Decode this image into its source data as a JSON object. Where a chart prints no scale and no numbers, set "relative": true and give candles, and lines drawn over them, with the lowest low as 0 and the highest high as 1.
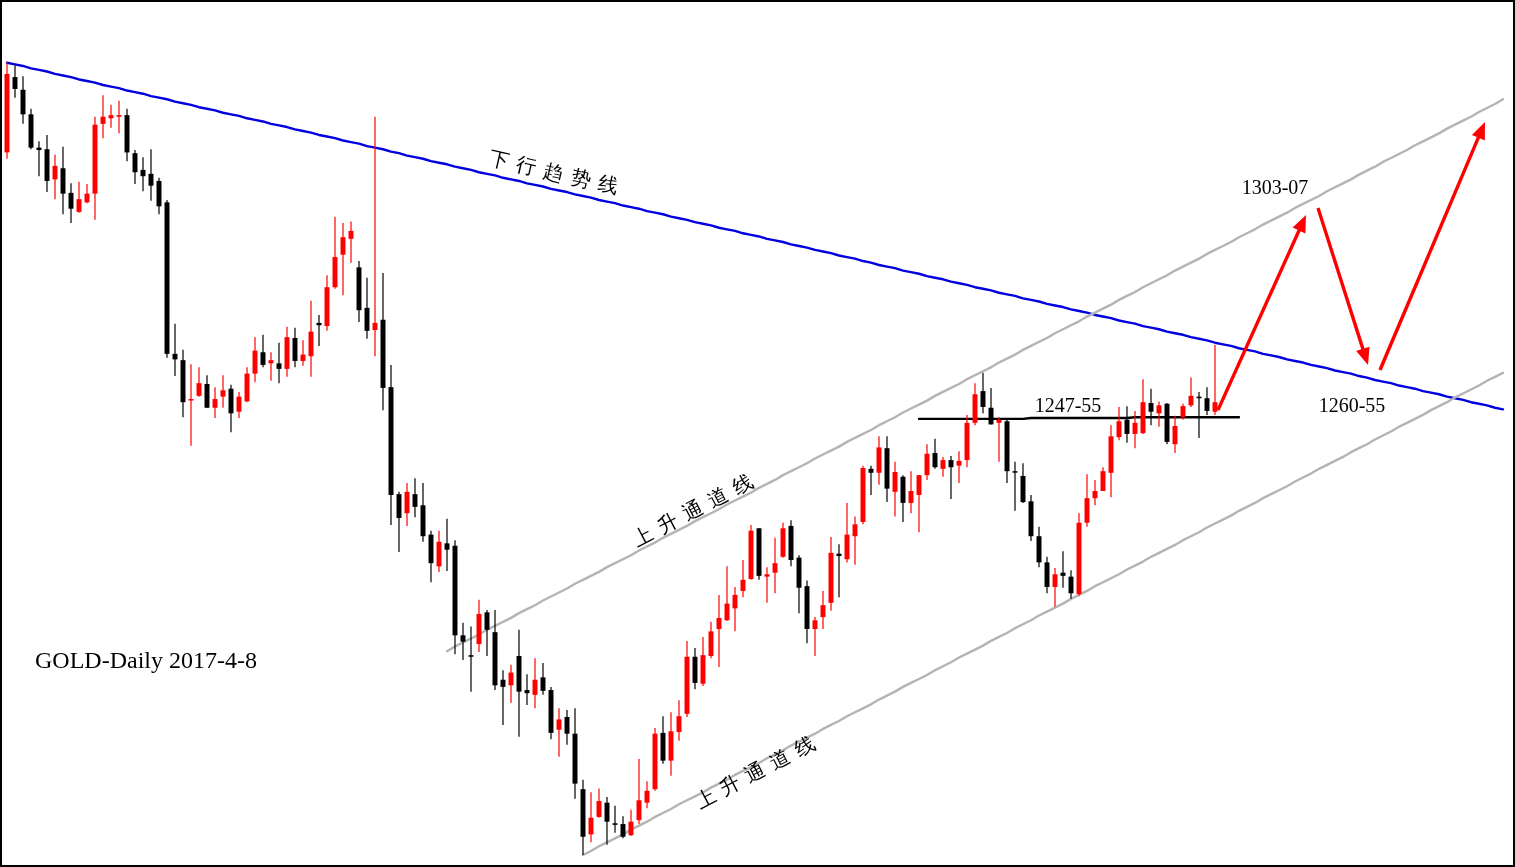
{
  "chart_data": {
    "type": "candlestick",
    "relative": true,
    "categories": [
      null,
      null,
      null,
      null,
      null,
      null,
      null,
      null,
      null,
      null,
      null,
      null,
      null,
      null,
      null,
      null,
      null,
      null,
      null,
      null,
      null,
      null,
      null,
      null,
      null,
      null,
      null,
      null,
      null,
      null,
      null,
      null,
      null,
      null,
      null,
      null,
      null,
      null,
      null,
      null,
      null,
      null,
      null,
      null,
      null,
      null,
      null,
      null,
      null,
      null,
      null,
      null,
      null,
      null,
      null,
      null,
      null,
      null,
      null,
      null,
      null,
      null,
      null,
      null,
      null,
      null,
      null,
      null,
      null,
      null,
      null,
      null,
      null,
      null,
      null,
      null,
      null,
      null,
      null,
      null,
      null,
      null,
      null,
      null,
      null,
      null,
      null,
      null,
      null,
      null,
      null,
      null,
      null,
      null,
      null,
      null,
      null,
      null,
      null,
      null,
      null,
      null,
      null,
      null,
      null,
      null,
      null,
      null,
      null,
      null,
      null,
      null,
      null,
      null,
      null,
      null,
      null,
      null,
      null,
      null,
      null,
      null,
      null,
      null,
      null,
      null,
      null,
      null,
      null,
      null,
      null,
      null,
      null,
      null,
      null,
      null,
      null,
      null,
      null,
      null,
      null,
      null,
      null,
      null,
      null,
      null,
      null,
      null,
      null,
      null,
      null,
      null,
      null,
      null,
      null,
      null,
      null,
      null,
      null,
      null,
      null,
      null,
      null,
      null,
      null,
      null,
      null,
      null,
      null,
      null,
      null,
      null,
      null,
      null,
      null,
      null,
      null,
      null,
      null,
      null,
      null,
      null,
      null,
      null,
      null,
      null,
      null,
      null
    ],
    "annotations": [
      "GOLD-Daily 2017-4-8",
      "1247-55",
      "1303-07",
      "1260-55"
    ],
    "series": [
      {
        "ohlc": [
          [
            0.886,
            1.0,
            0.878,
            0.985
          ],
          [
            0.981,
            0.996,
            0.955,
            0.966
          ],
          [
            0.965,
            0.982,
            0.922,
            0.934
          ],
          [
            0.934,
            0.941,
            0.89,
            0.892
          ],
          [
            0.892,
            0.9,
            0.856,
            0.889
          ],
          [
            0.89,
            0.908,
            0.836,
            0.85
          ],
          [
            0.852,
            0.883,
            0.827,
            0.869
          ],
          [
            0.866,
            0.893,
            0.808,
            0.834
          ],
          [
            0.835,
            0.847,
            0.797,
            0.815
          ],
          [
            0.811,
            0.849,
            0.81,
            0.827
          ],
          [
            0.823,
            0.846,
            0.822,
            0.834
          ],
          [
            0.834,
            0.931,
            0.801,
            0.921
          ],
          [
            0.922,
            0.958,
            0.904,
            0.931
          ],
          [
            0.929,
            0.946,
            0.917,
            0.933
          ],
          [
            0.931,
            0.951,
            0.91,
            0.933
          ],
          [
            0.933,
            0.941,
            0.875,
            0.886
          ],
          [
            0.885,
            0.889,
            0.846,
            0.861
          ],
          [
            0.864,
            0.88,
            0.837,
            0.856
          ],
          [
            0.859,
            0.89,
            0.825,
            0.844
          ],
          [
            0.85,
            0.854,
            0.808,
            0.818
          ],
          [
            0.823,
            0.826,
            0.627,
            0.632
          ],
          [
            0.632,
            0.67,
            0.604,
            0.625
          ],
          [
            0.624,
            0.637,
            0.552,
            0.571
          ],
          [
            0.574,
            0.619,
            0.516,
            0.575
          ],
          [
            0.579,
            0.615,
            0.578,
            0.595
          ],
          [
            0.594,
            0.605,
            0.564,
            0.564
          ],
          [
            0.564,
            0.59,
            0.551,
            0.575
          ],
          [
            0.578,
            0.605,
            0.564,
            0.586
          ],
          [
            0.588,
            0.593,
            0.533,
            0.557
          ],
          [
            0.559,
            0.584,
            0.551,
            0.578
          ],
          [
            0.572,
            0.615,
            0.571,
            0.607
          ],
          [
            0.607,
            0.653,
            0.596,
            0.636
          ],
          [
            0.634,
            0.656,
            0.615,
            0.618
          ],
          [
            0.62,
            0.634,
            0.598,
            0.624
          ],
          [
            0.62,
            0.646,
            0.595,
            0.613
          ],
          [
            0.613,
            0.666,
            0.603,
            0.653
          ],
          [
            0.652,
            0.665,
            0.615,
            0.623
          ],
          [
            0.623,
            0.649,
            0.617,
            0.631
          ],
          [
            0.629,
            0.699,
            0.603,
            0.66
          ],
          [
            0.671,
            0.681,
            0.642,
            0.668
          ],
          [
            0.667,
            0.731,
            0.661,
            0.716
          ],
          [
            0.716,
            0.805,
            0.714,
            0.754
          ],
          [
            0.757,
            0.797,
            0.706,
            0.779
          ],
          [
            0.777,
            0.799,
            0.747,
            0.787
          ],
          [
            0.741,
            0.749,
            0.672,
            0.687
          ],
          [
            0.69,
            0.728,
            0.651,
            0.661
          ],
          [
            0.662,
            0.931,
            0.629,
            0.671
          ],
          [
            0.675,
            0.734,
            0.561,
            0.589
          ],
          [
            0.59,
            0.618,
            0.416,
            0.454
          ],
          [
            0.455,
            0.458,
            0.382,
            0.425
          ],
          [
            0.431,
            0.469,
            0.415,
            0.458
          ],
          [
            0.455,
            0.475,
            0.426,
            0.439
          ],
          [
            0.441,
            0.469,
            0.395,
            0.402
          ],
          [
            0.404,
            0.409,
            0.344,
            0.368
          ],
          [
            0.364,
            0.409,
            0.357,
            0.395
          ],
          [
            0.393,
            0.424,
            0.358,
            0.385
          ],
          [
            0.39,
            0.397,
            0.253,
            0.277
          ],
          [
            0.277,
            0.293,
            0.246,
            0.269
          ],
          [
            0.252,
            0.288,
            0.206,
            0.25
          ],
          [
            0.266,
            0.322,
            0.256,
            0.304
          ],
          [
            0.306,
            0.309,
            0.251,
            0.284
          ],
          [
            0.281,
            0.309,
            0.208,
            0.214
          ],
          [
            0.221,
            0.233,
            0.164,
            0.212
          ],
          [
            0.214,
            0.24,
            0.192,
            0.23
          ],
          [
            0.251,
            0.284,
            0.149,
            0.206
          ],
          [
            0.208,
            0.228,
            0.189,
            0.204
          ],
          [
            0.202,
            0.248,
            0.185,
            0.221
          ],
          [
            0.224,
            0.242,
            0.202,
            0.207
          ],
          [
            0.208,
            0.212,
            0.146,
            0.154
          ],
          [
            0.158,
            0.185,
            0.124,
            0.171
          ],
          [
            0.174,
            0.183,
            0.139,
            0.153
          ],
          [
            0.153,
            0.185,
            0.071,
            0.09
          ],
          [
            0.083,
            0.095,
            0.0,
            0.023
          ],
          [
            0.026,
            0.079,
            0.016,
            0.047
          ],
          [
            0.048,
            0.084,
            0.047,
            0.068
          ],
          [
            0.066,
            0.073,
            0.013,
            0.042
          ],
          [
            0.04,
            0.062,
            0.028,
            0.038
          ],
          [
            0.039,
            0.049,
            0.021,
            0.023
          ],
          [
            0.025,
            0.057,
            0.024,
            0.042
          ],
          [
            0.044,
            0.121,
            0.039,
            0.069
          ],
          [
            0.066,
            0.093,
            0.059,
            0.081
          ],
          [
            0.083,
            0.16,
            0.081,
            0.153
          ],
          [
            0.154,
            0.175,
            0.115,
            0.119
          ],
          [
            0.119,
            0.18,
            0.1,
            0.156
          ],
          [
            0.155,
            0.195,
            0.144,
            0.175
          ],
          [
            0.178,
            0.27,
            0.174,
            0.25
          ],
          [
            0.25,
            0.261,
            0.209,
            0.217
          ],
          [
            0.216,
            0.275,
            0.213,
            0.252
          ],
          [
            0.251,
            0.294,
            0.248,
            0.282
          ],
          [
            0.285,
            0.328,
            0.237,
            0.299
          ],
          [
            0.296,
            0.364,
            0.295,
            0.317
          ],
          [
            0.311,
            0.338,
            0.282,
            0.328
          ],
          [
            0.333,
            0.372,
            0.325,
            0.347
          ],
          [
            0.348,
            0.416,
            0.347,
            0.409
          ],
          [
            0.412,
            0.412,
            0.347,
            0.352
          ],
          [
            0.351,
            0.363,
            0.318,
            0.354
          ],
          [
            0.356,
            0.4,
            0.33,
            0.368
          ],
          [
            0.376,
            0.419,
            0.375,
            0.412
          ],
          [
            0.415,
            0.422,
            0.364,
            0.372
          ],
          [
            0.375,
            0.378,
            0.305,
            0.337
          ],
          [
            0.339,
            0.346,
            0.267,
            0.285
          ],
          [
            0.285,
            0.3,
            0.251,
            0.296
          ],
          [
            0.3,
            0.333,
            0.285,
            0.315
          ],
          [
            0.318,
            0.401,
            0.308,
            0.381
          ],
          [
            0.38,
            0.392,
            0.325,
            0.377
          ],
          [
            0.373,
            0.444,
            0.369,
            0.404
          ],
          [
            0.402,
            0.427,
            0.366,
            0.417
          ],
          [
            0.42,
            0.491,
            0.417,
            0.488
          ],
          [
            0.487,
            0.491,
            0.454,
            0.482
          ],
          [
            0.482,
            0.528,
            0.467,
            0.514
          ],
          [
            0.513,
            0.528,
            0.445,
            0.462
          ],
          [
            0.458,
            0.496,
            0.427,
            0.483
          ],
          [
            0.477,
            0.479,
            0.42,
            0.444
          ],
          [
            0.444,
            0.484,
            0.431,
            0.459
          ],
          [
            0.454,
            0.479,
            0.407,
            0.479
          ],
          [
            0.479,
            0.518,
            0.473,
            0.506
          ],
          [
            0.507,
            0.525,
            0.487,
            0.489
          ],
          [
            0.487,
            0.502,
            0.477,
            0.498
          ],
          [
            0.498,
            0.503,
            0.449,
            0.489
          ],
          [
            0.491,
            0.509,
            0.469,
            0.497
          ],
          [
            0.498,
            0.555,
            0.489,
            0.545
          ],
          [
            0.545,
            0.595,
            0.542,
            0.581
          ],
          [
            0.585,
            0.608,
            0.557,
            0.565
          ],
          [
            0.564,
            0.589,
            0.543,
            0.543
          ],
          [
            0.545,
            0.552,
            0.496,
            0.549
          ],
          [
            0.547,
            0.549,
            0.469,
            0.484
          ],
          [
            0.484,
            0.496,
            0.434,
            0.483
          ],
          [
            0.478,
            0.494,
            0.444,
            0.445
          ],
          [
            0.446,
            0.454,
            0.396,
            0.402
          ],
          [
            0.402,
            0.414,
            0.363,
            0.369
          ],
          [
            0.369,
            0.376,
            0.33,
            0.338
          ],
          [
            0.338,
            0.362,
            0.313,
            0.354
          ],
          [
            0.356,
            0.383,
            0.337,
            0.352
          ],
          [
            0.351,
            0.359,
            0.323,
            0.33
          ],
          [
            0.329,
            0.431,
            0.327,
            0.419
          ],
          [
            0.419,
            0.48,
            0.414,
            0.45
          ],
          [
            0.45,
            0.473,
            0.441,
            0.459
          ],
          [
            0.459,
            0.489,
            0.459,
            0.484
          ],
          [
            0.482,
            0.542,
            0.451,
            0.528
          ],
          [
            0.527,
            0.565,
            0.523,
            0.547
          ],
          [
            0.549,
            0.566,
            0.52,
            0.531
          ],
          [
            0.531,
            0.56,
            0.513,
            0.545
          ],
          [
            0.532,
            0.6,
            0.531,
            0.571
          ],
          [
            0.57,
            0.588,
            0.542,
            0.559
          ],
          [
            0.557,
            0.572,
            0.54,
            0.567
          ],
          [
            0.569,
            0.57,
            0.518,
            0.521
          ],
          [
            0.518,
            0.554,
            0.507,
            0.541
          ],
          [
            0.552,
            0.569,
            0.549,
            0.566
          ],
          [
            0.567,
            0.602,
            0.565,
            0.579
          ],
          [
            0.578,
            0.584,
            0.526,
            0.576
          ],
          [
            0.576,
            0.59,
            0.555,
            0.56
          ],
          [
            0.559,
            0.643,
            0.555,
            0.571
          ],
          null,
          null,
          null,
          null,
          null,
          null,
          null,
          null,
          null,
          null,
          null,
          null,
          null,
          null,
          null,
          null,
          null,
          null,
          null,
          null,
          null,
          null,
          null,
          null,
          null,
          null,
          null,
          null,
          null,
          null,
          null,
          null,
          null,
          null,
          null,
          null
        ],
        "colors": [
          "#ff0000",
          "#000000",
          "#000000",
          "#000000",
          "#000000",
          "#000000",
          "#ff0000",
          "#000000",
          "#000000",
          "#ff0000",
          "#ff0000",
          "#ff0000",
          "#ff0000",
          "#ff0000",
          "#ff0000",
          "#000000",
          "#000000",
          "#000000",
          "#000000",
          "#000000",
          "#000000",
          "#000000",
          "#000000",
          "#ff0000",
          "#ff0000",
          "#000000",
          "#ff0000",
          "#ff0000",
          "#000000",
          "#ff0000",
          "#ff0000",
          "#ff0000",
          "#000000",
          "#ff0000",
          "#000000",
          "#ff0000",
          "#000000",
          "#ff0000",
          "#ff0000",
          "#000000",
          "#ff0000",
          "#ff0000",
          "#ff0000",
          "#ff0000",
          "#000000",
          "#000000",
          "#ff0000",
          "#000000",
          "#000000",
          "#000000",
          "#ff0000",
          "#000000",
          "#000000",
          "#000000",
          "#ff0000",
          "#000000",
          "#000000",
          "#000000",
          "#000000",
          "#ff0000",
          "#000000",
          "#000000",
          "#000000",
          "#ff0000",
          "#000000",
          "#000000",
          "#ff0000",
          "#000000",
          "#000000",
          "#ff0000",
          "#000000",
          "#000000",
          "#000000",
          "#ff0000",
          "#ff0000",
          "#000000",
          "#000000",
          "#000000",
          "#ff0000",
          "#ff0000",
          "#ff0000",
          "#ff0000",
          "#000000",
          "#ff0000",
          "#ff0000",
          "#ff0000",
          "#000000",
          "#ff0000",
          "#ff0000",
          "#ff0000",
          "#ff0000",
          "#ff0000",
          "#ff0000",
          "#ff0000",
          "#000000",
          "#ff0000",
          "#ff0000",
          "#ff0000",
          "#000000",
          "#000000",
          "#000000",
          "#ff0000",
          "#ff0000",
          "#ff0000",
          "#000000",
          "#ff0000",
          "#ff0000",
          "#ff0000",
          "#000000",
          "#ff0000",
          "#000000",
          "#ff0000",
          "#000000",
          "#ff0000",
          "#ff0000",
          "#ff0000",
          "#000000",
          "#ff0000",
          "#000000",
          "#ff0000",
          "#ff0000",
          "#ff0000",
          "#000000",
          "#000000",
          "#ff0000",
          "#000000",
          "#000000",
          "#000000",
          "#000000",
          "#000000",
          "#000000",
          "#ff0000",
          "#000000",
          "#000000",
          "#ff0000",
          "#ff0000",
          "#ff0000",
          "#ff0000",
          "#ff0000",
          "#ff0000",
          "#000000",
          "#ff0000",
          "#ff0000",
          "#000000",
          "#ff0000",
          "#000000",
          "#ff0000",
          "#ff0000",
          "#ff0000",
          "#000000",
          "#000000",
          "#ff0000",
          null,
          null,
          null,
          null,
          null,
          null,
          null,
          null,
          null,
          null,
          null,
          null,
          null,
          null,
          null,
          null,
          null,
          null,
          null,
          null,
          null,
          null,
          null,
          null,
          null,
          null,
          null,
          null,
          null,
          null,
          null,
          null,
          null,
          null,
          null,
          null
        ]
      },
      {
        "type": "line",
        "name": "下行趋势线",
        "color": "#0000e0",
        "values": [
          0.999,
          0.997,
          0.995,
          0.992,
          0.99,
          0.988,
          0.985,
          0.983,
          0.981,
          0.978,
          0.976,
          0.974,
          0.971,
          0.969,
          0.967,
          0.964,
          0.962,
          0.96,
          0.957,
          0.955,
          0.953,
          0.95,
          0.948,
          0.946,
          0.943,
          0.941,
          0.939,
          0.936,
          0.934,
          0.932,
          0.929,
          0.927,
          0.925,
          0.922,
          0.92,
          0.918,
          0.915,
          0.913,
          0.911,
          0.908,
          0.906,
          0.904,
          0.901,
          0.899,
          0.897,
          0.894,
          0.892,
          0.89,
          0.887,
          0.885,
          0.882,
          0.88,
          0.878,
          0.875,
          0.873,
          0.871,
          0.868,
          0.866,
          0.864,
          0.861,
          0.859,
          0.857,
          0.854,
          0.852,
          0.85,
          0.847,
          0.845,
          0.843,
          0.84,
          0.838,
          0.836,
          0.833,
          0.831,
          0.829,
          0.826,
          0.824,
          0.822,
          0.819,
          0.817,
          0.815,
          0.812,
          0.81,
          0.808,
          0.805,
          0.803,
          0.801,
          0.798,
          0.796,
          0.794,
          0.791,
          0.789,
          0.787,
          0.784,
          0.782,
          0.78,
          0.777,
          0.775,
          0.773,
          0.77,
          0.768,
          0.766,
          0.763,
          0.761,
          0.759,
          0.756,
          0.754,
          0.752,
          0.749,
          0.747,
          0.744,
          0.742,
          0.74,
          0.737,
          0.735,
          0.733,
          0.73,
          0.728,
          0.726,
          0.723,
          0.721,
          0.719,
          0.716,
          0.714,
          0.712,
          0.709,
          0.707,
          0.705,
          0.702,
          0.7,
          0.698,
          0.695,
          0.693,
          0.691,
          0.688,
          0.686,
          0.684,
          0.681,
          0.679,
          0.677,
          0.674,
          0.672,
          0.67,
          0.667,
          0.665,
          0.663,
          0.66,
          0.658,
          0.656,
          0.653,
          0.651,
          0.649,
          0.646,
          0.644,
          0.642,
          0.639,
          0.637,
          0.635,
          0.632,
          0.63,
          0.628,
          0.625,
          0.623,
          0.621,
          0.618,
          0.616,
          0.614,
          0.611,
          0.609,
          0.607,
          0.604,
          0.602,
          0.599,
          0.597,
          0.595,
          0.592,
          0.59,
          0.588,
          0.585,
          0.583,
          0.581,
          0.578,
          0.576,
          0.574,
          0.571,
          0.569,
          0.567,
          0.564,
          0.562
        ]
      },
      {
        "type": "line",
        "name": "上升通道线",
        "color": "#b4b4b4",
        "values": [
          null,
          null,
          null,
          null,
          null,
          null,
          null,
          null,
          null,
          null,
          null,
          null,
          null,
          null,
          null,
          null,
          null,
          null,
          null,
          null,
          null,
          null,
          null,
          null,
          null,
          null,
          null,
          null,
          null,
          null,
          null,
          null,
          null,
          null,
          null,
          null,
          null,
          null,
          null,
          null,
          null,
          null,
          null,
          null,
          null,
          null,
          null,
          null,
          null,
          null,
          null,
          null,
          null,
          null,
          null,
          0.257,
          0.263,
          0.268,
          0.273,
          0.278,
          0.284,
          0.289,
          0.294,
          0.299,
          0.305,
          0.31,
          0.315,
          0.321,
          0.326,
          0.331,
          0.336,
          0.342,
          0.347,
          0.352,
          0.357,
          0.363,
          0.368,
          0.373,
          0.378,
          0.384,
          0.389,
          0.394,
          0.4,
          0.405,
          0.41,
          0.415,
          0.421,
          0.426,
          0.431,
          0.436,
          0.442,
          0.447,
          0.452,
          0.457,
          0.463,
          0.468,
          0.473,
          0.479,
          0.484,
          0.489,
          0.494,
          0.5,
          0.505,
          0.51,
          0.515,
          0.521,
          0.526,
          0.531,
          0.536,
          0.542,
          0.547,
          0.552,
          0.558,
          0.563,
          0.568,
          0.573,
          0.579,
          0.584,
          0.589,
          0.594,
          0.6,
          0.605,
          0.61,
          0.615,
          0.621,
          0.626,
          0.631,
          0.637,
          0.642,
          0.647,
          0.652,
          0.658,
          0.663,
          0.668,
          0.673,
          0.679,
          0.684,
          0.689,
          0.694,
          0.7,
          0.705,
          0.71,
          0.716,
          0.721,
          0.726,
          0.731,
          0.737,
          0.742,
          0.747,
          0.752,
          0.758,
          0.763,
          0.768,
          0.773,
          0.779,
          0.784,
          0.789,
          0.795,
          0.8,
          0.805,
          0.81,
          0.816,
          0.821,
          0.826,
          0.831,
          0.837,
          0.842,
          0.847,
          0.852,
          0.858,
          0.863,
          0.868,
          0.874,
          0.879,
          0.884,
          0.889,
          0.895,
          0.9,
          0.905,
          0.91,
          0.916,
          0.921,
          0.926,
          0.931,
          0.937,
          0.942,
          0.947,
          0.953
        ]
      },
      {
        "type": "line",
        "name": "上升通道线",
        "color": "#b4b4b4",
        "values": [
          null,
          null,
          null,
          null,
          null,
          null,
          null,
          null,
          null,
          null,
          null,
          null,
          null,
          null,
          null,
          null,
          null,
          null,
          null,
          null,
          null,
          null,
          null,
          null,
          null,
          null,
          null,
          null,
          null,
          null,
          null,
          null,
          null,
          null,
          null,
          null,
          null,
          null,
          null,
          null,
          null,
          null,
          null,
          null,
          null,
          null,
          null,
          null,
          null,
          null,
          null,
          null,
          null,
          null,
          null,
          null,
          null,
          null,
          null,
          null,
          null,
          null,
          null,
          null,
          null,
          null,
          null,
          null,
          null,
          null,
          null,
          null,
          0.0,
          0.005,
          0.011,
          0.016,
          0.021,
          0.026,
          0.032,
          0.037,
          0.042,
          0.048,
          0.053,
          0.058,
          0.064,
          0.069,
          0.074,
          0.079,
          0.085,
          0.09,
          0.095,
          0.101,
          0.106,
          0.111,
          0.116,
          0.122,
          0.127,
          0.132,
          0.138,
          0.143,
          0.148,
          0.153,
          0.159,
          0.164,
          0.169,
          0.175,
          0.18,
          0.185,
          0.19,
          0.196,
          0.201,
          0.206,
          0.212,
          0.217,
          0.222,
          0.227,
          0.233,
          0.238,
          0.243,
          0.249,
          0.254,
          0.259,
          0.264,
          0.27,
          0.275,
          0.28,
          0.286,
          0.291,
          0.296,
          0.302,
          0.307,
          0.312,
          0.317,
          0.323,
          0.328,
          0.333,
          0.339,
          0.344,
          0.349,
          0.354,
          0.36,
          0.365,
          0.37,
          0.376,
          0.381,
          0.386,
          0.391,
          0.397,
          0.402,
          0.407,
          0.413,
          0.418,
          0.423,
          0.428,
          0.434,
          0.439,
          0.444,
          0.45,
          0.455,
          0.46,
          0.465,
          0.471,
          0.476,
          0.481,
          0.487,
          0.492,
          0.497,
          0.502,
          0.508,
          0.513,
          0.518,
          0.524,
          0.529,
          0.534,
          0.54,
          0.545,
          0.55,
          0.555,
          0.561,
          0.566,
          0.571,
          0.577,
          0.582,
          0.587,
          0.592,
          0.598,
          0.603,
          0.608
        ]
      },
      {
        "type": "line",
        "color": "#000000",
        "values": [
          null,
          null,
          null,
          null,
          null,
          null,
          null,
          null,
          null,
          null,
          null,
          null,
          null,
          null,
          null,
          null,
          null,
          null,
          null,
          null,
          null,
          null,
          null,
          null,
          null,
          null,
          null,
          null,
          null,
          null,
          null,
          null,
          null,
          null,
          null,
          null,
          null,
          null,
          null,
          null,
          null,
          null,
          null,
          null,
          null,
          null,
          null,
          null,
          null,
          null,
          null,
          null,
          null,
          null,
          null,
          null,
          null,
          null,
          null,
          null,
          null,
          null,
          null,
          null,
          null,
          null,
          null,
          null,
          null,
          null,
          null,
          null,
          null,
          null,
          null,
          null,
          null,
          null,
          null,
          null,
          null,
          null,
          null,
          null,
          null,
          null,
          null,
          null,
          null,
          null,
          null,
          null,
          null,
          null,
          null,
          null,
          null,
          null,
          null,
          null,
          null,
          null,
          null,
          null,
          null,
          null,
          null,
          null,
          null,
          null,
          null,
          null,
          null,
          null,
          0.55,
          0.55,
          0.55,
          0.55,
          0.55,
          0.55,
          0.55,
          0.55,
          0.55,
          0.55,
          0.55,
          0.55,
          0.55,
          0.55,
          0.551,
          0.551,
          0.551,
          0.551,
          0.551,
          0.551,
          0.551,
          0.551,
          0.551,
          0.551,
          0.551,
          0.551,
          0.551,
          0.552,
          0.552,
          0.552,
          0.552,
          0.552,
          0.552,
          0.552,
          0.552,
          0.552,
          0.552,
          0.552,
          0.552,
          0.552,
          0.552,
          null,
          null,
          null,
          null,
          null,
          null,
          null,
          null,
          null,
          null,
          null,
          null,
          null,
          null,
          null,
          null,
          null,
          null,
          null,
          null,
          null,
          null,
          null,
          null,
          null,
          null,
          null,
          null,
          null,
          null,
          null,
          null,
          null
        ]
      }
    ]
  }
}
